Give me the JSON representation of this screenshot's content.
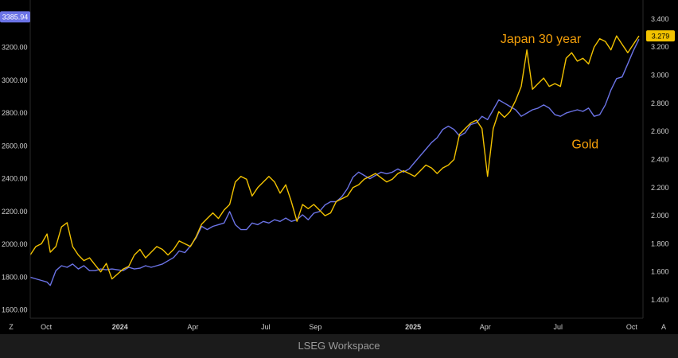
{
  "footer_text": "LSEG Workspace",
  "corner_left": "Z",
  "corner_right": "A",
  "chart_data": {
    "type": "line",
    "left_axis": {
      "ticks": [
        "3200.00",
        "3000.00",
        "2800.00",
        "2600.00",
        "2400.00",
        "2200.00",
        "2000.00",
        "1800.00",
        "1600.00"
      ],
      "range": [
        1550,
        3450
      ]
    },
    "right_axis": {
      "ticks": [
        "3.400",
        "3.200",
        "3.000",
        "2.800",
        "2.600",
        "2.400",
        "2.200",
        "2.000",
        "1.800",
        "1.600",
        "1.400"
      ],
      "range": [
        1.27,
        3.49
      ]
    },
    "x_ticks": [
      {
        "label": "Oct",
        "date": "2023-10-01",
        "bold": false
      },
      {
        "label": "2024",
        "date": "2024-01-01",
        "bold": true
      },
      {
        "label": "Apr",
        "date": "2024-04-01",
        "bold": false
      },
      {
        "label": "Jul",
        "date": "2024-07-01",
        "bold": false
      },
      {
        "label": "Sep",
        "date": "2024-09-01",
        "bold": false
      },
      {
        "label": "2025",
        "date": "2025-01-01",
        "bold": true
      },
      {
        "label": "Apr",
        "date": "2025-04-01",
        "bold": false
      },
      {
        "label": "Jul",
        "date": "2025-07-01",
        "bold": false
      },
      {
        "label": "Oct",
        "date": "2025-10-01",
        "bold": false
      }
    ],
    "x_range": [
      "2023-09-11",
      "2025-10-15"
    ],
    "series": [
      {
        "name": "Gold",
        "axis": "left",
        "color": "#6b73e6",
        "last_label": "3385.94",
        "points": [
          [
            "2023-09-11",
            1800
          ],
          [
            "2023-09-18",
            1790
          ],
          [
            "2023-09-25",
            1780
          ],
          [
            "2023-10-02",
            1770
          ],
          [
            "2023-10-06",
            1750
          ],
          [
            "2023-10-13",
            1840
          ],
          [
            "2023-10-20",
            1870
          ],
          [
            "2023-10-27",
            1860
          ],
          [
            "2023-11-03",
            1880
          ],
          [
            "2023-11-10",
            1850
          ],
          [
            "2023-11-17",
            1870
          ],
          [
            "2023-11-24",
            1840
          ],
          [
            "2023-12-01",
            1840
          ],
          [
            "2023-12-08",
            1850
          ],
          [
            "2023-12-15",
            1845
          ],
          [
            "2023-12-22",
            1850
          ],
          [
            "2024-01-05",
            1840
          ],
          [
            "2024-01-12",
            1860
          ],
          [
            "2024-01-19",
            1850
          ],
          [
            "2024-01-26",
            1855
          ],
          [
            "2024-02-02",
            1870
          ],
          [
            "2024-02-09",
            1860
          ],
          [
            "2024-02-16",
            1870
          ],
          [
            "2024-02-23",
            1880
          ],
          [
            "2024-03-01",
            1900
          ],
          [
            "2024-03-08",
            1920
          ],
          [
            "2024-03-15",
            1960
          ],
          [
            "2024-03-22",
            1950
          ],
          [
            "2024-03-29",
            1990
          ],
          [
            "2024-04-05",
            2040
          ],
          [
            "2024-04-12",
            2110
          ],
          [
            "2024-04-19",
            2090
          ],
          [
            "2024-04-26",
            2110
          ],
          [
            "2024-05-03",
            2120
          ],
          [
            "2024-05-10",
            2130
          ],
          [
            "2024-05-17",
            2200
          ],
          [
            "2024-05-24",
            2120
          ],
          [
            "2024-05-31",
            2090
          ],
          [
            "2024-06-07",
            2090
          ],
          [
            "2024-06-14",
            2130
          ],
          [
            "2024-06-21",
            2120
          ],
          [
            "2024-06-28",
            2140
          ],
          [
            "2024-07-05",
            2130
          ],
          [
            "2024-07-12",
            2150
          ],
          [
            "2024-07-19",
            2140
          ],
          [
            "2024-07-26",
            2160
          ],
          [
            "2024-08-02",
            2140
          ],
          [
            "2024-08-09",
            2150
          ],
          [
            "2024-08-16",
            2180
          ],
          [
            "2024-08-23",
            2150
          ],
          [
            "2024-08-30",
            2190
          ],
          [
            "2024-09-06",
            2200
          ],
          [
            "2024-09-13",
            2240
          ],
          [
            "2024-09-20",
            2260
          ],
          [
            "2024-09-27",
            2260
          ],
          [
            "2024-10-04",
            2290
          ],
          [
            "2024-10-11",
            2340
          ],
          [
            "2024-10-18",
            2410
          ],
          [
            "2024-10-25",
            2440
          ],
          [
            "2024-11-01",
            2420
          ],
          [
            "2024-11-08",
            2400
          ],
          [
            "2024-11-15",
            2420
          ],
          [
            "2024-11-22",
            2440
          ],
          [
            "2024-11-29",
            2430
          ],
          [
            "2024-12-06",
            2440
          ],
          [
            "2024-12-13",
            2460
          ],
          [
            "2024-12-20",
            2440
          ],
          [
            "2024-12-27",
            2460
          ],
          [
            "2025-01-03",
            2500
          ],
          [
            "2025-01-10",
            2540
          ],
          [
            "2025-01-17",
            2580
          ],
          [
            "2025-01-24",
            2620
          ],
          [
            "2025-01-31",
            2650
          ],
          [
            "2025-02-07",
            2700
          ],
          [
            "2025-02-14",
            2720
          ],
          [
            "2025-02-21",
            2700
          ],
          [
            "2025-02-28",
            2660
          ],
          [
            "2025-03-07",
            2680
          ],
          [
            "2025-03-14",
            2730
          ],
          [
            "2025-03-21",
            2740
          ],
          [
            "2025-03-28",
            2780
          ],
          [
            "2025-04-04",
            2760
          ],
          [
            "2025-04-11",
            2820
          ],
          [
            "2025-04-18",
            2880
          ],
          [
            "2025-04-25",
            2860
          ],
          [
            "2025-05-02",
            2840
          ],
          [
            "2025-05-09",
            2820
          ],
          [
            "2025-05-16",
            2780
          ],
          [
            "2025-05-23",
            2800
          ],
          [
            "2025-05-30",
            2820
          ],
          [
            "2025-06-06",
            2830
          ],
          [
            "2025-06-13",
            2850
          ],
          [
            "2025-06-20",
            2830
          ],
          [
            "2025-06-27",
            2790
          ],
          [
            "2025-07-04",
            2780
          ],
          [
            "2025-07-11",
            2800
          ],
          [
            "2025-07-18",
            2810
          ],
          [
            "2025-07-25",
            2820
          ],
          [
            "2025-08-01",
            2810
          ],
          [
            "2025-08-08",
            2830
          ],
          [
            "2025-08-15",
            2780
          ],
          [
            "2025-08-22",
            2790
          ],
          [
            "2025-08-29",
            2850
          ],
          [
            "2025-09-05",
            2940
          ],
          [
            "2025-09-12",
            3010
          ],
          [
            "2025-09-19",
            3020
          ],
          [
            "2025-09-26",
            3100
          ],
          [
            "2025-10-03",
            3180
          ],
          [
            "2025-10-10",
            3250
          ]
        ]
      },
      {
        "name": "Japan 30 year",
        "axis": "right",
        "color": "#f2c200",
        "last_label": "3.279",
        "points": [
          [
            "2023-09-11",
            1.72
          ],
          [
            "2023-09-18",
            1.78
          ],
          [
            "2023-09-25",
            1.8
          ],
          [
            "2023-10-02",
            1.87
          ],
          [
            "2023-10-06",
            1.74
          ],
          [
            "2023-10-13",
            1.78
          ],
          [
            "2023-10-20",
            1.92
          ],
          [
            "2023-10-27",
            1.95
          ],
          [
            "2023-11-03",
            1.78
          ],
          [
            "2023-11-10",
            1.72
          ],
          [
            "2023-11-17",
            1.68
          ],
          [
            "2023-11-24",
            1.7
          ],
          [
            "2023-12-01",
            1.65
          ],
          [
            "2023-12-08",
            1.6
          ],
          [
            "2023-12-15",
            1.66
          ],
          [
            "2023-12-22",
            1.55
          ],
          [
            "2024-01-05",
            1.62
          ],
          [
            "2024-01-12",
            1.64
          ],
          [
            "2024-01-19",
            1.72
          ],
          [
            "2024-01-26",
            1.76
          ],
          [
            "2024-02-02",
            1.7
          ],
          [
            "2024-02-09",
            1.74
          ],
          [
            "2024-02-16",
            1.78
          ],
          [
            "2024-02-23",
            1.76
          ],
          [
            "2024-03-01",
            1.72
          ],
          [
            "2024-03-08",
            1.76
          ],
          [
            "2024-03-15",
            1.82
          ],
          [
            "2024-03-22",
            1.8
          ],
          [
            "2024-03-29",
            1.78
          ],
          [
            "2024-04-05",
            1.85
          ],
          [
            "2024-04-12",
            1.94
          ],
          [
            "2024-04-19",
            1.98
          ],
          [
            "2024-04-26",
            2.02
          ],
          [
            "2024-05-03",
            1.98
          ],
          [
            "2024-05-10",
            2.04
          ],
          [
            "2024-05-17",
            2.08
          ],
          [
            "2024-05-24",
            2.24
          ],
          [
            "2024-05-31",
            2.28
          ],
          [
            "2024-06-07",
            2.26
          ],
          [
            "2024-06-14",
            2.14
          ],
          [
            "2024-06-21",
            2.2
          ],
          [
            "2024-06-28",
            2.24
          ],
          [
            "2024-07-05",
            2.28
          ],
          [
            "2024-07-12",
            2.24
          ],
          [
            "2024-07-19",
            2.16
          ],
          [
            "2024-07-26",
            2.22
          ],
          [
            "2024-08-02",
            2.1
          ],
          [
            "2024-08-09",
            1.96
          ],
          [
            "2024-08-16",
            2.08
          ],
          [
            "2024-08-23",
            2.05
          ],
          [
            "2024-08-30",
            2.08
          ],
          [
            "2024-09-06",
            2.04
          ],
          [
            "2024-09-13",
            2.0
          ],
          [
            "2024-09-20",
            2.02
          ],
          [
            "2024-09-27",
            2.1
          ],
          [
            "2024-10-04",
            2.12
          ],
          [
            "2024-10-11",
            2.14
          ],
          [
            "2024-10-18",
            2.2
          ],
          [
            "2024-10-25",
            2.22
          ],
          [
            "2024-11-01",
            2.26
          ],
          [
            "2024-11-08",
            2.28
          ],
          [
            "2024-11-15",
            2.3
          ],
          [
            "2024-11-22",
            2.27
          ],
          [
            "2024-11-29",
            2.24
          ],
          [
            "2024-12-06",
            2.26
          ],
          [
            "2024-12-13",
            2.3
          ],
          [
            "2024-12-20",
            2.32
          ],
          [
            "2024-12-27",
            2.3
          ],
          [
            "2025-01-03",
            2.28
          ],
          [
            "2025-01-10",
            2.32
          ],
          [
            "2025-01-17",
            2.36
          ],
          [
            "2025-01-24",
            2.34
          ],
          [
            "2025-01-31",
            2.3
          ],
          [
            "2025-02-07",
            2.34
          ],
          [
            "2025-02-14",
            2.36
          ],
          [
            "2025-02-21",
            2.4
          ],
          [
            "2025-02-28",
            2.58
          ],
          [
            "2025-03-07",
            2.62
          ],
          [
            "2025-03-14",
            2.66
          ],
          [
            "2025-03-21",
            2.68
          ],
          [
            "2025-03-28",
            2.62
          ],
          [
            "2025-04-04",
            2.28
          ],
          [
            "2025-04-11",
            2.62
          ],
          [
            "2025-04-18",
            2.74
          ],
          [
            "2025-04-25",
            2.7
          ],
          [
            "2025-05-02",
            2.74
          ],
          [
            "2025-05-09",
            2.82
          ],
          [
            "2025-05-16",
            2.92
          ],
          [
            "2025-05-23",
            3.18
          ],
          [
            "2025-05-30",
            2.9
          ],
          [
            "2025-06-06",
            2.94
          ],
          [
            "2025-06-13",
            2.98
          ],
          [
            "2025-06-20",
            2.92
          ],
          [
            "2025-06-27",
            2.94
          ],
          [
            "2025-07-04",
            2.92
          ],
          [
            "2025-07-11",
            3.12
          ],
          [
            "2025-07-18",
            3.16
          ],
          [
            "2025-07-25",
            3.1
          ],
          [
            "2025-08-01",
            3.12
          ],
          [
            "2025-08-08",
            3.08
          ],
          [
            "2025-08-15",
            3.2
          ],
          [
            "2025-08-22",
            3.26
          ],
          [
            "2025-08-29",
            3.24
          ],
          [
            "2025-09-05",
            3.18
          ],
          [
            "2025-09-12",
            3.28
          ],
          [
            "2025-09-19",
            3.22
          ],
          [
            "2025-09-26",
            3.16
          ],
          [
            "2025-10-03",
            3.22
          ],
          [
            "2025-10-10",
            3.28
          ]
        ]
      }
    ],
    "annotations": [
      {
        "text": "Japan 30 year",
        "color": "#f5a00a",
        "date": "2025-04-20",
        "value_right": 3.23
      },
      {
        "text": "Gold",
        "color": "#f5a00a",
        "date": "2025-07-18",
        "value_right": 2.48
      }
    ],
    "grid": false
  }
}
